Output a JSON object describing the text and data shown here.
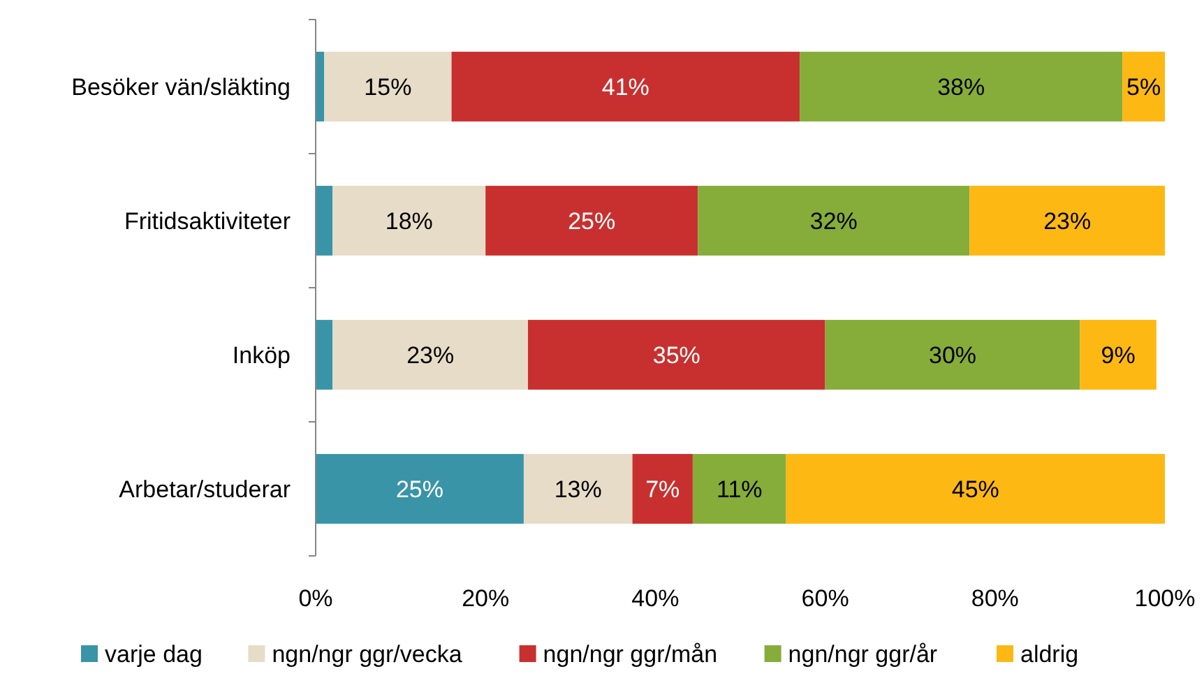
{
  "chart_data": {
    "type": "bar",
    "orientation": "horizontal",
    "stacked": true,
    "categories": [
      "Besöker vän/släkting",
      "Fritidsaktiviteter",
      "Inköp",
      "Arbetar/studerar"
    ],
    "series": [
      {
        "name": "varje dag",
        "color": "#3a94a8",
        "values": [
          1,
          2,
          2,
          24.5
        ],
        "value_labels": [
          null,
          null,
          null,
          "25%"
        ]
      },
      {
        "name": "ngn/ngr ggr/vecka",
        "color": "#e6dcc8",
        "values": [
          15,
          18,
          23,
          12.8
        ],
        "value_labels": [
          "15%",
          "18%",
          "23%",
          "13%"
        ]
      },
      {
        "name": "ngn/ngr ggr/mån",
        "color": "#c8302f",
        "values": [
          41,
          25,
          35,
          7.1
        ],
        "value_labels": [
          "41%",
          "25%",
          "35%",
          "7%"
        ]
      },
      {
        "name": "ngn/ngr ggr/år",
        "color": "#86ac3a",
        "values": [
          38,
          32,
          30,
          11
        ],
        "value_labels": [
          "38%",
          "32%",
          "30%",
          "11%"
        ]
      },
      {
        "name": "aldrig",
        "color": "#fdb813",
        "values": [
          5,
          23,
          9,
          44.6
        ],
        "value_labels": [
          "5%",
          "23%",
          "9%",
          "45%"
        ]
      }
    ],
    "xlim": [
      0,
      100
    ],
    "xticks": [
      {
        "value": 0,
        "label": "0%"
      },
      {
        "value": 20,
        "label": "20%"
      },
      {
        "value": 40,
        "label": "40%"
      },
      {
        "value": 60,
        "label": "60%"
      },
      {
        "value": 80,
        "label": "80%"
      },
      {
        "value": 100,
        "label": "100%"
      }
    ],
    "legend": "bottom"
  }
}
